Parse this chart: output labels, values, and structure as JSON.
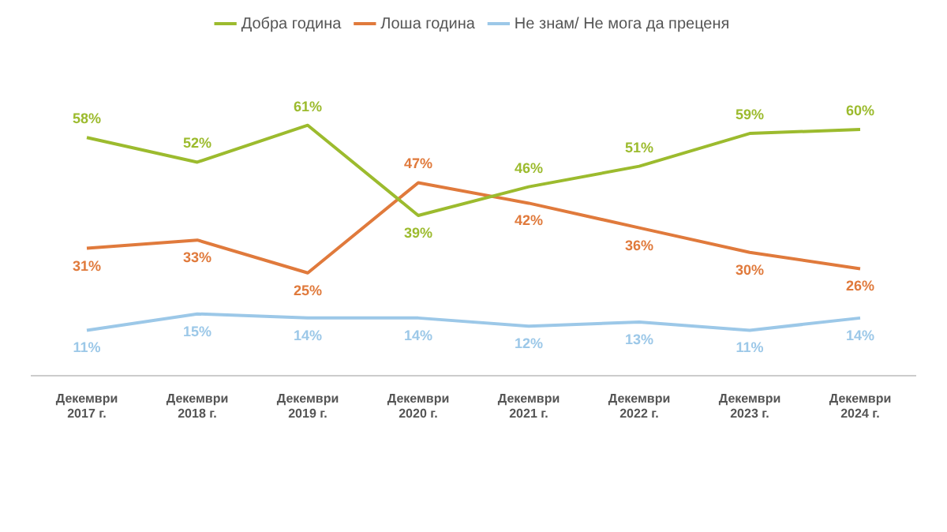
{
  "chart_data": {
    "type": "line",
    "categories": [
      [
        "Декември",
        "2017 г."
      ],
      [
        "Декември",
        "2018 г."
      ],
      [
        "Декември",
        "2019 г."
      ],
      [
        "Декември",
        "2020 г."
      ],
      [
        "Декември",
        "2021 г."
      ],
      [
        "Декември",
        "2022 г."
      ],
      [
        "Декември",
        "2023 г."
      ],
      [
        "Декември",
        "2024 г."
      ]
    ],
    "series": [
      {
        "name": "Добра година",
        "color": "#9cbb2e",
        "values": [
          58,
          52,
          61,
          39,
          46,
          51,
          59,
          60
        ],
        "value_labels": [
          "58%",
          "52%",
          "61%",
          "39%",
          "46%",
          "51%",
          "59%",
          "60%"
        ]
      },
      {
        "name": "Лоша година",
        "color": "#e07a3c",
        "values": [
          31,
          33,
          25,
          47,
          42,
          36,
          30,
          26
        ],
        "value_labels": [
          "31%",
          "33%",
          "25%",
          "47%",
          "42%",
          "36%",
          "30%",
          "26%"
        ]
      },
      {
        "name": "Не знам/ Не мога да преценя",
        "color": "#9cc8e8",
        "values": [
          11,
          15,
          14,
          14,
          12,
          13,
          11,
          14
        ],
        "value_labels": [
          "11%",
          "15%",
          "14%",
          "14%",
          "12%",
          "13%",
          "11%",
          "14%"
        ]
      }
    ],
    "legend": "top",
    "grid": false,
    "marker": "none",
    "line_style": "solid",
    "tick_labels": "x"
  }
}
